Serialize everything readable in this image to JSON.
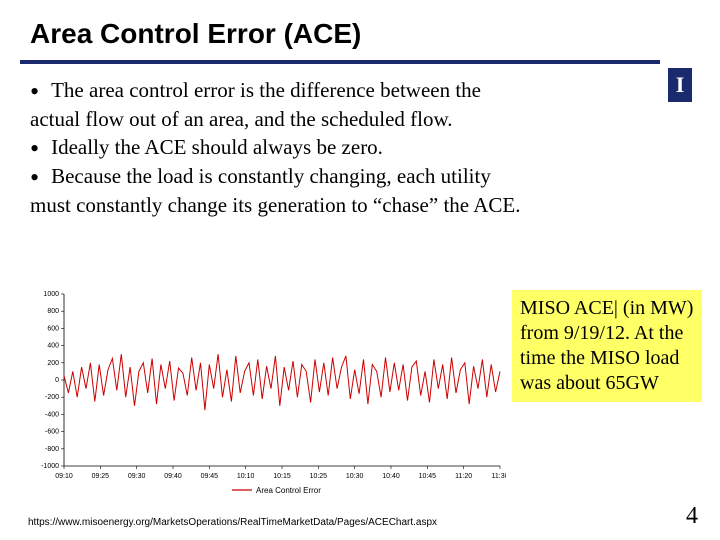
{
  "title": "Area Control Error (ACE)",
  "logo_letter": "I",
  "bullets": [
    {
      "lead": "The area control error is the difference between the",
      "cont": "actual flow out of an area, and the scheduled flow."
    },
    {
      "lead": "Ideally the ACE should always be zero.",
      "cont": ""
    },
    {
      "lead": "Because the load is constantly changing, each utility",
      "cont": "must constantly change its generation to “chase” the ACE."
    }
  ],
  "sidebox_text": "MISO ACE| (in MW) from 9/19/12.  At the time the MISO load was about 65GW",
  "footer_url": "https://www.misoenergy.org/MarketsOperations/RealTimeMarketData/Pages/ACEChart.aspx",
  "page_number": "4",
  "chart": {
    "type": "line",
    "ylim": [
      -1000,
      1000
    ],
    "ytick_step": 200,
    "yticks": [
      1000,
      800,
      600,
      400,
      200,
      0,
      -200,
      -400,
      -600,
      -800,
      -1000
    ],
    "xticks": [
      "09:10",
      "09:25",
      "09:30",
      "09:40",
      "09:45",
      "10:10",
      "10:15",
      "10:25",
      "10:30",
      "10:40",
      "10:45",
      "11:20",
      "11:30"
    ],
    "line_color": "#cc0000",
    "axis_color": "#000000",
    "tick_font_size": 7,
    "background": "#ffffff",
    "legend_label": "Area Control Error",
    "series": [
      50,
      -150,
      100,
      -200,
      150,
      -100,
      200,
      -250,
      180,
      -180,
      120,
      250,
      -120,
      300,
      -200,
      150,
      -300,
      100,
      200,
      -150,
      250,
      -280,
      180,
      -100,
      220,
      -240,
      140,
      80,
      -180,
      260,
      -120,
      200,
      -350,
      180,
      -100,
      300,
      -200,
      120,
      -250,
      280,
      -150,
      100,
      200,
      -180,
      240,
      -220,
      160,
      -100,
      280,
      -300,
      150,
      -120,
      220,
      -200,
      180,
      100,
      -260,
      240,
      -140,
      200,
      -180,
      260,
      -100,
      150,
      280,
      -220,
      120,
      -160,
      240,
      -280,
      180,
      100,
      -200,
      260,
      -140,
      200,
      -120,
      180,
      -240,
      150,
      220,
      -180,
      100,
      -260,
      240,
      -100,
      180,
      -220,
      260,
      -150,
      120,
      200,
      -280,
      160,
      -100,
      240,
      -200,
      180,
      -140,
      100
    ]
  }
}
